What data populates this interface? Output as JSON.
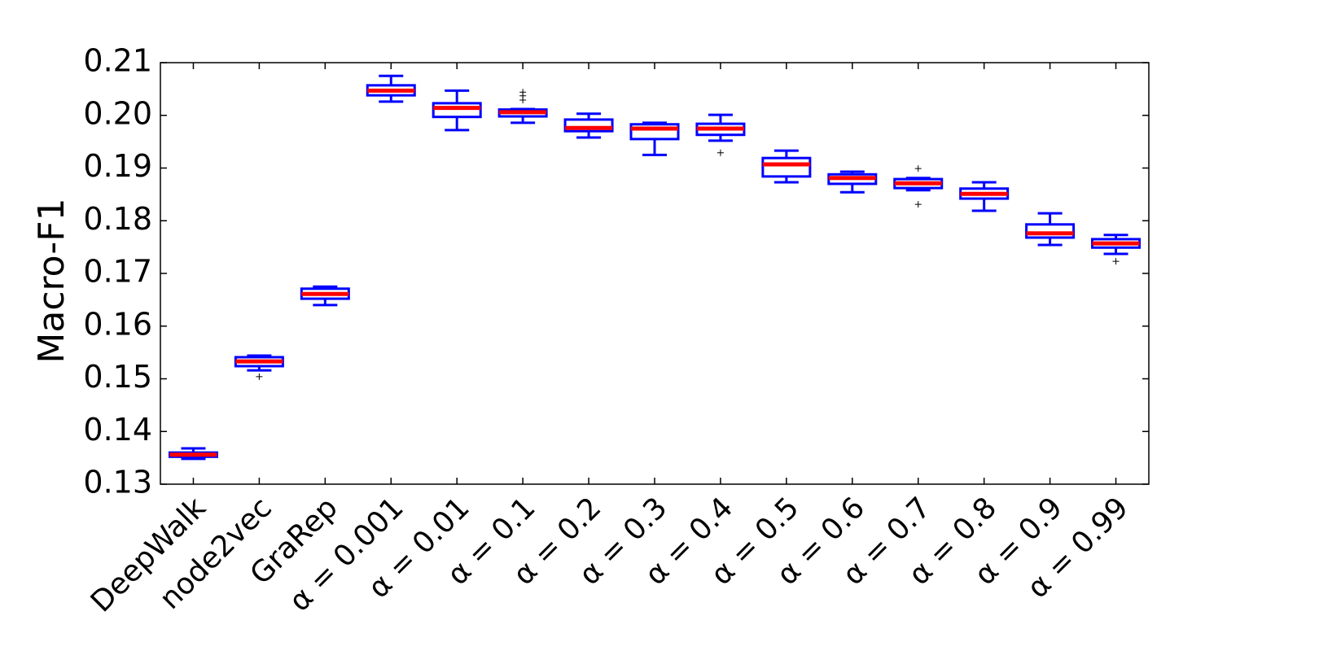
{
  "chart_data": {
    "type": "box",
    "ylabel": "Macro-F1",
    "categories": [
      "DeepWalk",
      "node2vec",
      "GraRep",
      "α = 0.001",
      "α = 0.01",
      "α = 0.1",
      "α = 0.2",
      "α = 0.3",
      "α = 0.4",
      "α = 0.5",
      "α = 0.6",
      "α = 0.7",
      "α = 0.8",
      "α = 0.9",
      "α = 0.99"
    ],
    "boxes": [
      {
        "whislo": 0.1348,
        "q1": 0.1352,
        "med": 0.1356,
        "q3": 0.136,
        "whishi": 0.1368
      },
      {
        "whislo": 0.1516,
        "q1": 0.1524,
        "med": 0.1533,
        "q3": 0.1541,
        "whishi": 0.1544,
        "fliers": [
          0.1504
        ]
      },
      {
        "whislo": 0.164,
        "q1": 0.1652,
        "med": 0.1661,
        "q3": 0.1671,
        "whishi": 0.1675
      },
      {
        "whislo": 0.2026,
        "q1": 0.2038,
        "med": 0.2047,
        "q3": 0.2057,
        "whishi": 0.2075
      },
      {
        "whislo": 0.1972,
        "q1": 0.1997,
        "med": 0.2014,
        "q3": 0.2023,
        "whishi": 0.2047
      },
      {
        "whislo": 0.1986,
        "q1": 0.1998,
        "med": 0.2006,
        "q3": 0.2011,
        "whishi": 0.2012,
        "fliers": [
          0.2029,
          0.2037,
          0.2044
        ]
      },
      {
        "whislo": 0.1958,
        "q1": 0.197,
        "med": 0.1976,
        "q3": 0.1992,
        "whishi": 0.2003
      },
      {
        "whislo": 0.1925,
        "q1": 0.1955,
        "med": 0.1975,
        "q3": 0.1983,
        "whishi": 0.1986
      },
      {
        "whislo": 0.1952,
        "q1": 0.1963,
        "med": 0.1975,
        "q3": 0.1984,
        "whishi": 0.2001,
        "fliers": [
          0.1929
        ]
      },
      {
        "whislo": 0.1873,
        "q1": 0.1884,
        "med": 0.1907,
        "q3": 0.1919,
        "whishi": 0.1933
      },
      {
        "whislo": 0.1854,
        "q1": 0.187,
        "med": 0.1881,
        "q3": 0.1888,
        "whishi": 0.1893
      },
      {
        "whislo": 0.1858,
        "q1": 0.1862,
        "med": 0.1871,
        "q3": 0.1879,
        "whishi": 0.1881,
        "fliers": [
          0.1831,
          0.1899
        ]
      },
      {
        "whislo": 0.1819,
        "q1": 0.1842,
        "med": 0.1851,
        "q3": 0.1861,
        "whishi": 0.1873
      },
      {
        "whislo": 0.1754,
        "q1": 0.1768,
        "med": 0.1776,
        "q3": 0.1793,
        "whishi": 0.1814
      },
      {
        "whislo": 0.1737,
        "q1": 0.1749,
        "med": 0.1757,
        "q3": 0.1765,
        "whishi": 0.1773,
        "fliers": [
          0.1723
        ]
      }
    ],
    "box_color": "#0000ff",
    "median_color": "#ff0000",
    "flier_color": "#000000",
    "ylim": [
      0.13,
      0.21
    ],
    "yticks": [
      0.13,
      0.14,
      0.15,
      0.16,
      0.17,
      0.18,
      0.19,
      {
        "value": 0.2,
        "label": "0.20"
      },
      0.21
    ]
  }
}
